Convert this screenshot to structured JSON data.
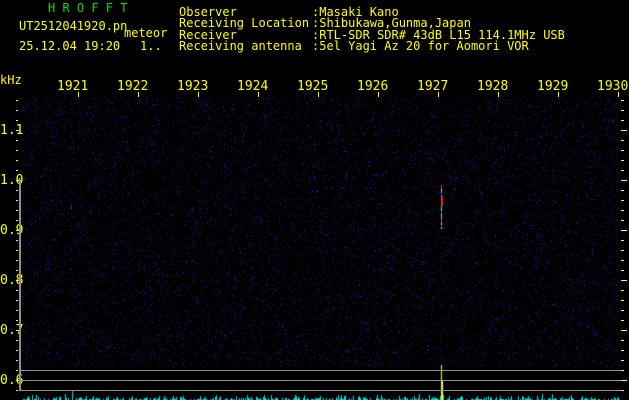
{
  "header": {
    "app_title": "H R O F F T",
    "filename": "UT2512041920.pn",
    "mode": "meteor",
    "datetime": "25.12.04 19:20",
    "counter": "1..",
    "info": [
      {
        "label": "Observer",
        "value": ":Masaki Kano"
      },
      {
        "label": "Receiving Location",
        "value": ":Shibukawa,Gunma,Japan"
      },
      {
        "label": "Receiver",
        "value": ":RTL-SDR SDR# 43dB L15 114.1MHz USB"
      },
      {
        "label": "Receiving antenna",
        "value": ":5el Yagi Az 20 for Aomori VOR"
      }
    ]
  },
  "axes": {
    "freq_unit": "kHz",
    "freq_labels": [
      "1.1",
      "1.0",
      "0.9",
      "0.8",
      "0.7",
      "0.6"
    ],
    "time_labels": [
      "1921",
      "1922",
      "1923",
      "1924",
      "1925",
      "1926",
      "1927",
      "1928",
      "1929",
      "1930"
    ]
  },
  "colors": {
    "text": "#ffff00",
    "title": "#00e000",
    "noise": "#1a1aa0",
    "spectrum": "#00e0e0",
    "grid": "#909090"
  }
}
